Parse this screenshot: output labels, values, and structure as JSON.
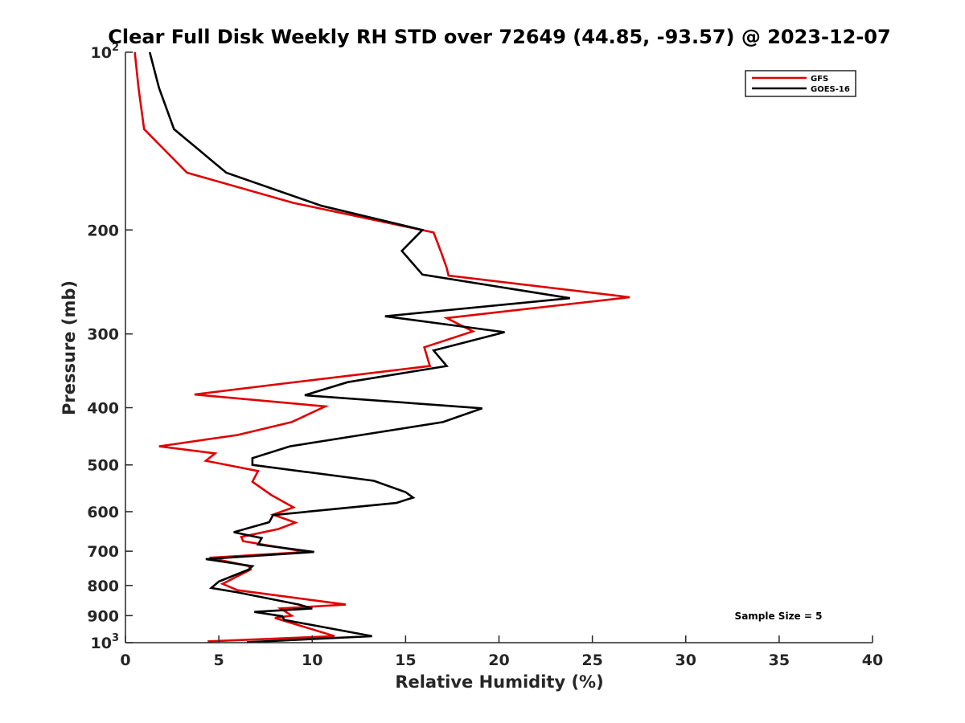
{
  "chart_data": {
    "type": "line",
    "title": "Clear Full Disk Weekly RH STD over 72649 (44.85, -93.57) @ 2023-12-07",
    "xlabel": "Relative Humidity (%)",
    "ylabel": "Pressure (mb)",
    "xlim": [
      0,
      40
    ],
    "ylim": [
      100,
      1000
    ],
    "y_scale": "log",
    "y_reversed": true,
    "x_ticks": [
      "0",
      "5",
      "10",
      "15",
      "20",
      "25",
      "30",
      "35",
      "40"
    ],
    "y_ticks": [
      {
        "value": 100,
        "base": "10",
        "exp": "2"
      },
      {
        "value": 200,
        "label": "200"
      },
      {
        "value": 300,
        "label": "300"
      },
      {
        "value": 400,
        "label": "400"
      },
      {
        "value": 500,
        "label": "500"
      },
      {
        "value": 600,
        "label": "600"
      },
      {
        "value": 700,
        "label": "700"
      },
      {
        "value": 800,
        "label": "800"
      },
      {
        "value": 900,
        "label": "900"
      },
      {
        "value": 1000,
        "base": "10",
        "exp": "3"
      }
    ],
    "legend_position": "top-right",
    "annotation": "Sample Size = 5",
    "series": [
      {
        "name": "GFS",
        "color": "#e00000",
        "points": [
          [
            0.5,
            100
          ],
          [
            0.7,
            115
          ],
          [
            1.0,
            135
          ],
          [
            3.3,
            160
          ],
          [
            9.0,
            180
          ],
          [
            16.5,
            202
          ],
          [
            16.9,
            218
          ],
          [
            17.2,
            232
          ],
          [
            17.3,
            239
          ],
          [
            27.0,
            260
          ],
          [
            17.2,
            282
          ],
          [
            18.6,
            297
          ],
          [
            16.0,
            316
          ],
          [
            16.3,
            340
          ],
          [
            8.8,
            363
          ],
          [
            3.7,
            380
          ],
          [
            10.7,
            398
          ],
          [
            8.9,
            423
          ],
          [
            6.0,
            445
          ],
          [
            1.8,
            465
          ],
          [
            4.8,
            478
          ],
          [
            4.3,
            492
          ],
          [
            7.1,
            512
          ],
          [
            6.8,
            534
          ],
          [
            7.8,
            562
          ],
          [
            9.0,
            590
          ],
          [
            7.9,
            607
          ],
          [
            9.1,
            626
          ],
          [
            8.2,
            642
          ],
          [
            6.2,
            662
          ],
          [
            6.3,
            673
          ],
          [
            9.7,
            702
          ],
          [
            4.5,
            718
          ],
          [
            6.6,
            742
          ],
          [
            6.7,
            752
          ],
          [
            5.2,
            795
          ],
          [
            6.0,
            815
          ],
          [
            11.8,
            862
          ],
          [
            8.3,
            875
          ],
          [
            8.9,
            900
          ],
          [
            8.0,
            908
          ],
          [
            11.2,
            975
          ],
          [
            4.4,
            995
          ]
        ]
      },
      {
        "name": "GOES-16",
        "color": "#000000",
        "points": [
          [
            1.3,
            100
          ],
          [
            1.8,
            115
          ],
          [
            2.6,
            135
          ],
          [
            5.4,
            160
          ],
          [
            10.5,
            182
          ],
          [
            15.9,
            200
          ],
          [
            14.8,
            217
          ],
          [
            15.9,
            238
          ],
          [
            23.8,
            261
          ],
          [
            13.9,
            280
          ],
          [
            20.3,
            298
          ],
          [
            16.5,
            320
          ],
          [
            17.2,
            340
          ],
          [
            11.9,
            362
          ],
          [
            9.6,
            381
          ],
          [
            19.1,
            401
          ],
          [
            17.0,
            423
          ],
          [
            13.0,
            443
          ],
          [
            8.8,
            465
          ],
          [
            6.8,
            487
          ],
          [
            6.8,
            500
          ],
          [
            13.3,
            532
          ],
          [
            15.0,
            556
          ],
          [
            15.4,
            568
          ],
          [
            14.5,
            580
          ],
          [
            7.9,
            608
          ],
          [
            7.7,
            625
          ],
          [
            5.8,
            650
          ],
          [
            7.3,
            665
          ],
          [
            7.1,
            682
          ],
          [
            10.1,
            702
          ],
          [
            4.3,
            722
          ],
          [
            6.8,
            742
          ],
          [
            6.6,
            752
          ],
          [
            5.0,
            788
          ],
          [
            4.6,
            808
          ],
          [
            6.0,
            822
          ],
          [
            9.3,
            862
          ],
          [
            10.0,
            875
          ],
          [
            6.9,
            887
          ],
          [
            8.4,
            902
          ],
          [
            8.5,
            915
          ],
          [
            13.2,
            975
          ],
          [
            6.5,
            998
          ]
        ]
      }
    ]
  }
}
